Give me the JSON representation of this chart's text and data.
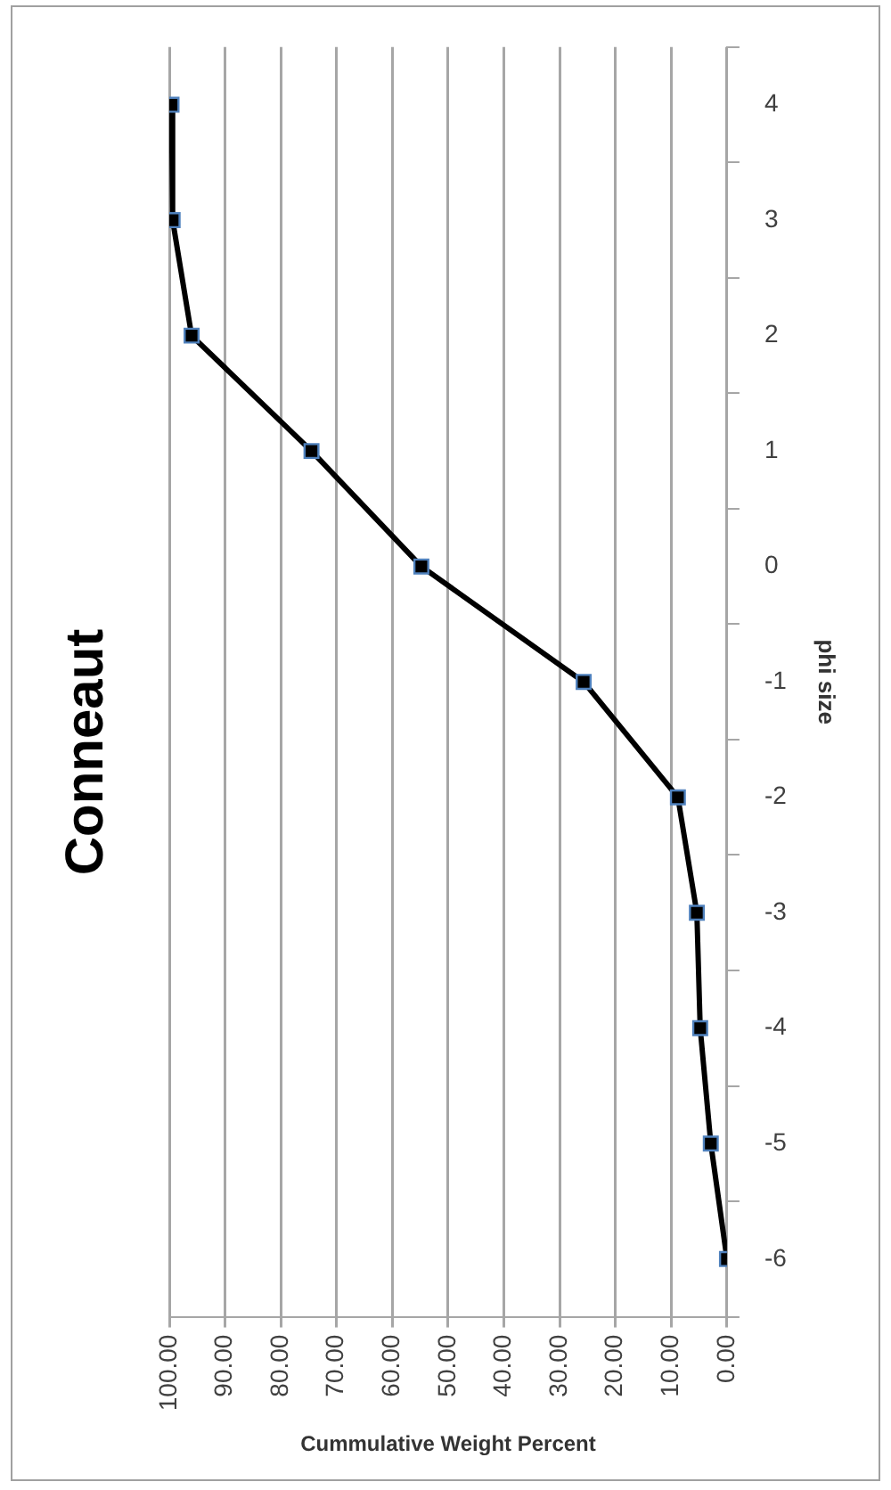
{
  "chart_data": {
    "type": "line",
    "orientation": "horizontal",
    "title": "Conneaut",
    "xlabel": "Cummulative Weight Percent",
    "ylabel": "phi size",
    "categories": [
      "4",
      "3",
      "2",
      "1",
      "0",
      "-1",
      "-2",
      "-3",
      "-4",
      "-5",
      "-6"
    ],
    "series": [
      {
        "color": "#000000",
        "values": [
          99.6,
          99.4,
          96,
          74.5,
          54.8,
          25.7,
          8.8,
          5.4,
          4.8,
          2.9,
          0
        ]
      }
    ],
    "xlim": [
      100,
      0
    ],
    "xticks": [
      {
        "value": 100,
        "label": "100.00"
      },
      {
        "value": 90,
        "label": "90.00"
      },
      {
        "value": 80,
        "label": "80.00"
      },
      {
        "value": 70,
        "label": "70.00"
      },
      {
        "value": 60,
        "label": "60.00"
      },
      {
        "value": 50,
        "label": "50.00"
      },
      {
        "value": 40,
        "label": "40.00"
      },
      {
        "value": 30,
        "label": "30.00"
      },
      {
        "value": 20,
        "label": "20.00"
      },
      {
        "value": 10,
        "label": "10.00"
      },
      {
        "value": 0,
        "label": "0.00"
      }
    ],
    "grid": "x",
    "legend": false,
    "marker": "square",
    "line_style": "solid"
  }
}
